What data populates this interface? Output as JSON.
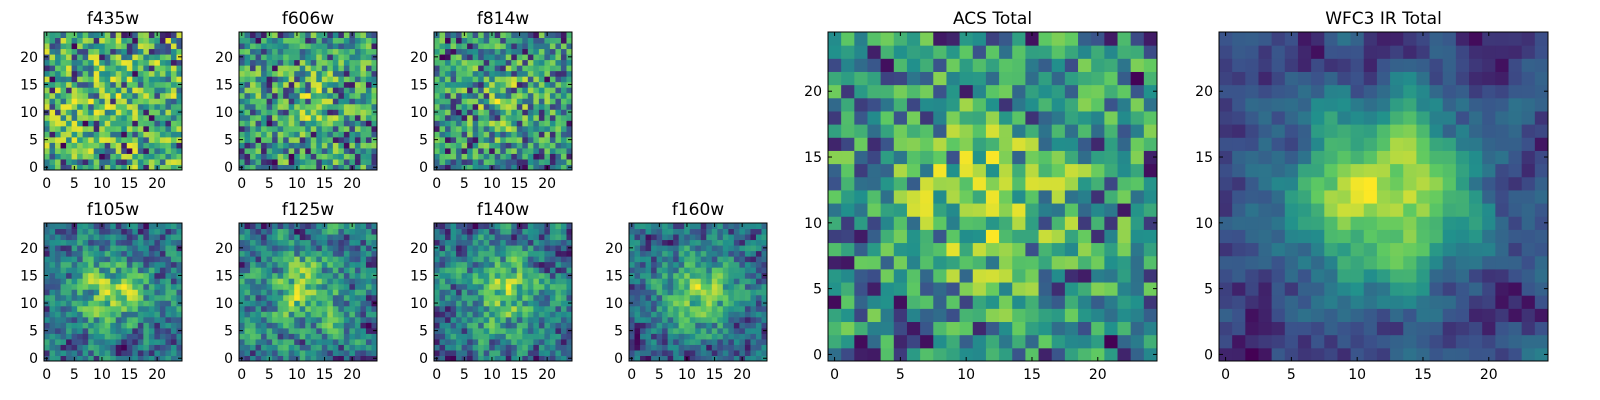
{
  "figure": {
    "colormap": [
      "#440154",
      "#3b528b",
      "#21918c",
      "#5ec962",
      "#fde725"
    ]
  },
  "chart_data": [
    {
      "type": "heatmap",
      "title": "f435w",
      "grid_size": 25,
      "seed": 11,
      "center_strength": 0.05,
      "smoothness": 0,
      "xlim": [
        0,
        24
      ],
      "ylim": [
        0,
        24
      ],
      "xticks": [
        0,
        5,
        10,
        15,
        20
      ],
      "yticks": [
        0,
        5,
        10,
        15,
        20
      ]
    },
    {
      "type": "heatmap",
      "title": "f606w",
      "grid_size": 25,
      "seed": 23,
      "center_strength": 0.15,
      "smoothness": 0,
      "xlim": [
        0,
        24
      ],
      "ylim": [
        0,
        24
      ],
      "xticks": [
        0,
        5,
        10,
        15,
        20
      ],
      "yticks": [
        0,
        5,
        10,
        15,
        20
      ]
    },
    {
      "type": "heatmap",
      "title": "f814w",
      "grid_size": 25,
      "seed": 37,
      "center_strength": 0.18,
      "smoothness": 0,
      "xlim": [
        0,
        24
      ],
      "ylim": [
        0,
        24
      ],
      "xticks": [
        0,
        5,
        10,
        15,
        20
      ],
      "yticks": [
        0,
        5,
        10,
        15,
        20
      ]
    },
    {
      "type": "heatmap",
      "title": "f105w",
      "grid_size": 25,
      "seed": 41,
      "center_strength": 0.3,
      "smoothness": 1,
      "xlim": [
        0,
        24
      ],
      "ylim": [
        0,
        24
      ],
      "xticks": [
        0,
        5,
        10,
        15,
        20
      ],
      "yticks": [
        0,
        5,
        10,
        15,
        20
      ]
    },
    {
      "type": "heatmap",
      "title": "f125w",
      "grid_size": 25,
      "seed": 53,
      "center_strength": 0.25,
      "smoothness": 1,
      "xlim": [
        0,
        24
      ],
      "ylim": [
        0,
        24
      ],
      "xticks": [
        0,
        5,
        10,
        15,
        20
      ],
      "yticks": [
        0,
        5,
        10,
        15,
        20
      ]
    },
    {
      "type": "heatmap",
      "title": "f140w",
      "grid_size": 25,
      "seed": 67,
      "center_strength": 0.3,
      "smoothness": 1,
      "xlim": [
        0,
        24
      ],
      "ylim": [
        0,
        24
      ],
      "xticks": [
        0,
        5,
        10,
        15,
        20
      ],
      "yticks": [
        0,
        5,
        10,
        15,
        20
      ]
    },
    {
      "type": "heatmap",
      "title": "f160w",
      "grid_size": 25,
      "seed": 79,
      "center_strength": 0.35,
      "smoothness": 1,
      "xlim": [
        0,
        24
      ],
      "ylim": [
        0,
        24
      ],
      "xticks": [
        0,
        5,
        10,
        15,
        20
      ],
      "yticks": [
        0,
        5,
        10,
        15,
        20
      ]
    },
    {
      "type": "heatmap",
      "title": "ACS Total",
      "grid_size": 25,
      "seed": 91,
      "center_strength": 0.25,
      "smoothness": 0,
      "xlim": [
        0,
        24
      ],
      "ylim": [
        0,
        24
      ],
      "xticks": [
        0,
        5,
        10,
        15,
        20
      ],
      "yticks": [
        0,
        5,
        10,
        15,
        20
      ]
    },
    {
      "type": "heatmap",
      "title": "WFC3 IR Total",
      "grid_size": 25,
      "seed": 103,
      "center_strength": 0.5,
      "smoothness": 2,
      "xlim": [
        0,
        24
      ],
      "ylim": [
        0,
        24
      ],
      "xticks": [
        0,
        5,
        10,
        15,
        20
      ],
      "yticks": [
        0,
        5,
        10,
        15,
        20
      ]
    }
  ]
}
